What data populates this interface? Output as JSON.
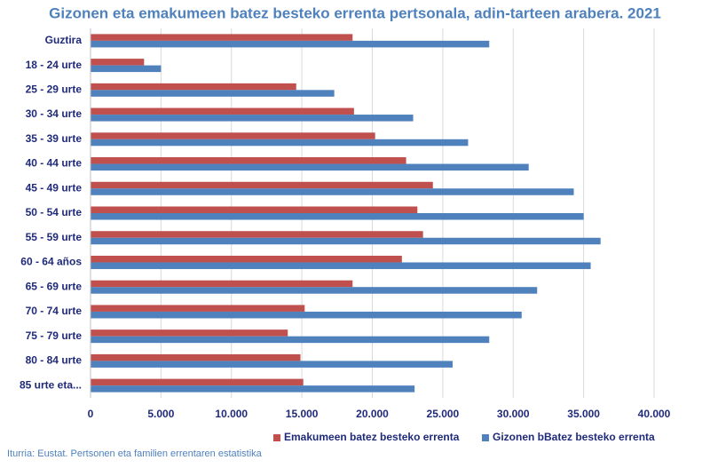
{
  "chart_data": {
    "type": "hbar",
    "title": "Gizonen eta emakumeen batez besteko errenta pertsonala, adin-tarteen arabera. 2021",
    "categories": [
      "Guztira",
      "18 - 24 urte",
      "25 - 29 urte",
      "30 - 34 urte",
      "35 - 39 urte",
      "40 - 44 urte",
      "45 - 49 urte",
      "50 - 54 urte",
      "55 - 59 urte",
      "60 - 64 años",
      "65 - 69 urte",
      "70 - 74 urte",
      "75 - 79 urte",
      "80 - 84 urte",
      "85 urte eta..."
    ],
    "series": [
      {
        "name": "Emakumeen batez besteko errenta",
        "color": "#c0504d",
        "values": [
          18600,
          3800,
          14600,
          18700,
          20200,
          22400,
          24300,
          23200,
          23600,
          22100,
          18600,
          15200,
          14000,
          14900,
          15100
        ]
      },
      {
        "name": "Gizonen bBatez besteko errenta",
        "color": "#4f81bd",
        "values": [
          28300,
          5000,
          17300,
          22900,
          26800,
          31100,
          34300,
          35000,
          36200,
          35500,
          31700,
          30600,
          28300,
          25700,
          23000
        ]
      }
    ],
    "xlim": [
      0,
      40000
    ],
    "xticks": [
      0,
      {
        "value": 5000,
        "label": "5.000"
      },
      {
        "value": 10000,
        "label": "10.000"
      },
      {
        "value": 15000,
        "label": "15.000"
      },
      {
        "value": 20000,
        "label": "20.000"
      },
      {
        "value": 25000,
        "label": "25.000"
      },
      {
        "value": 30000,
        "label": "30.000"
      },
      {
        "value": 35000,
        "label": "35.000"
      },
      {
        "value": 40000,
        "label": "40.000"
      }
    ],
    "grid": true,
    "legend": "bottom",
    "source": "Iturria: Eustat. Pertsonen eta familien errentaren estatistika"
  }
}
